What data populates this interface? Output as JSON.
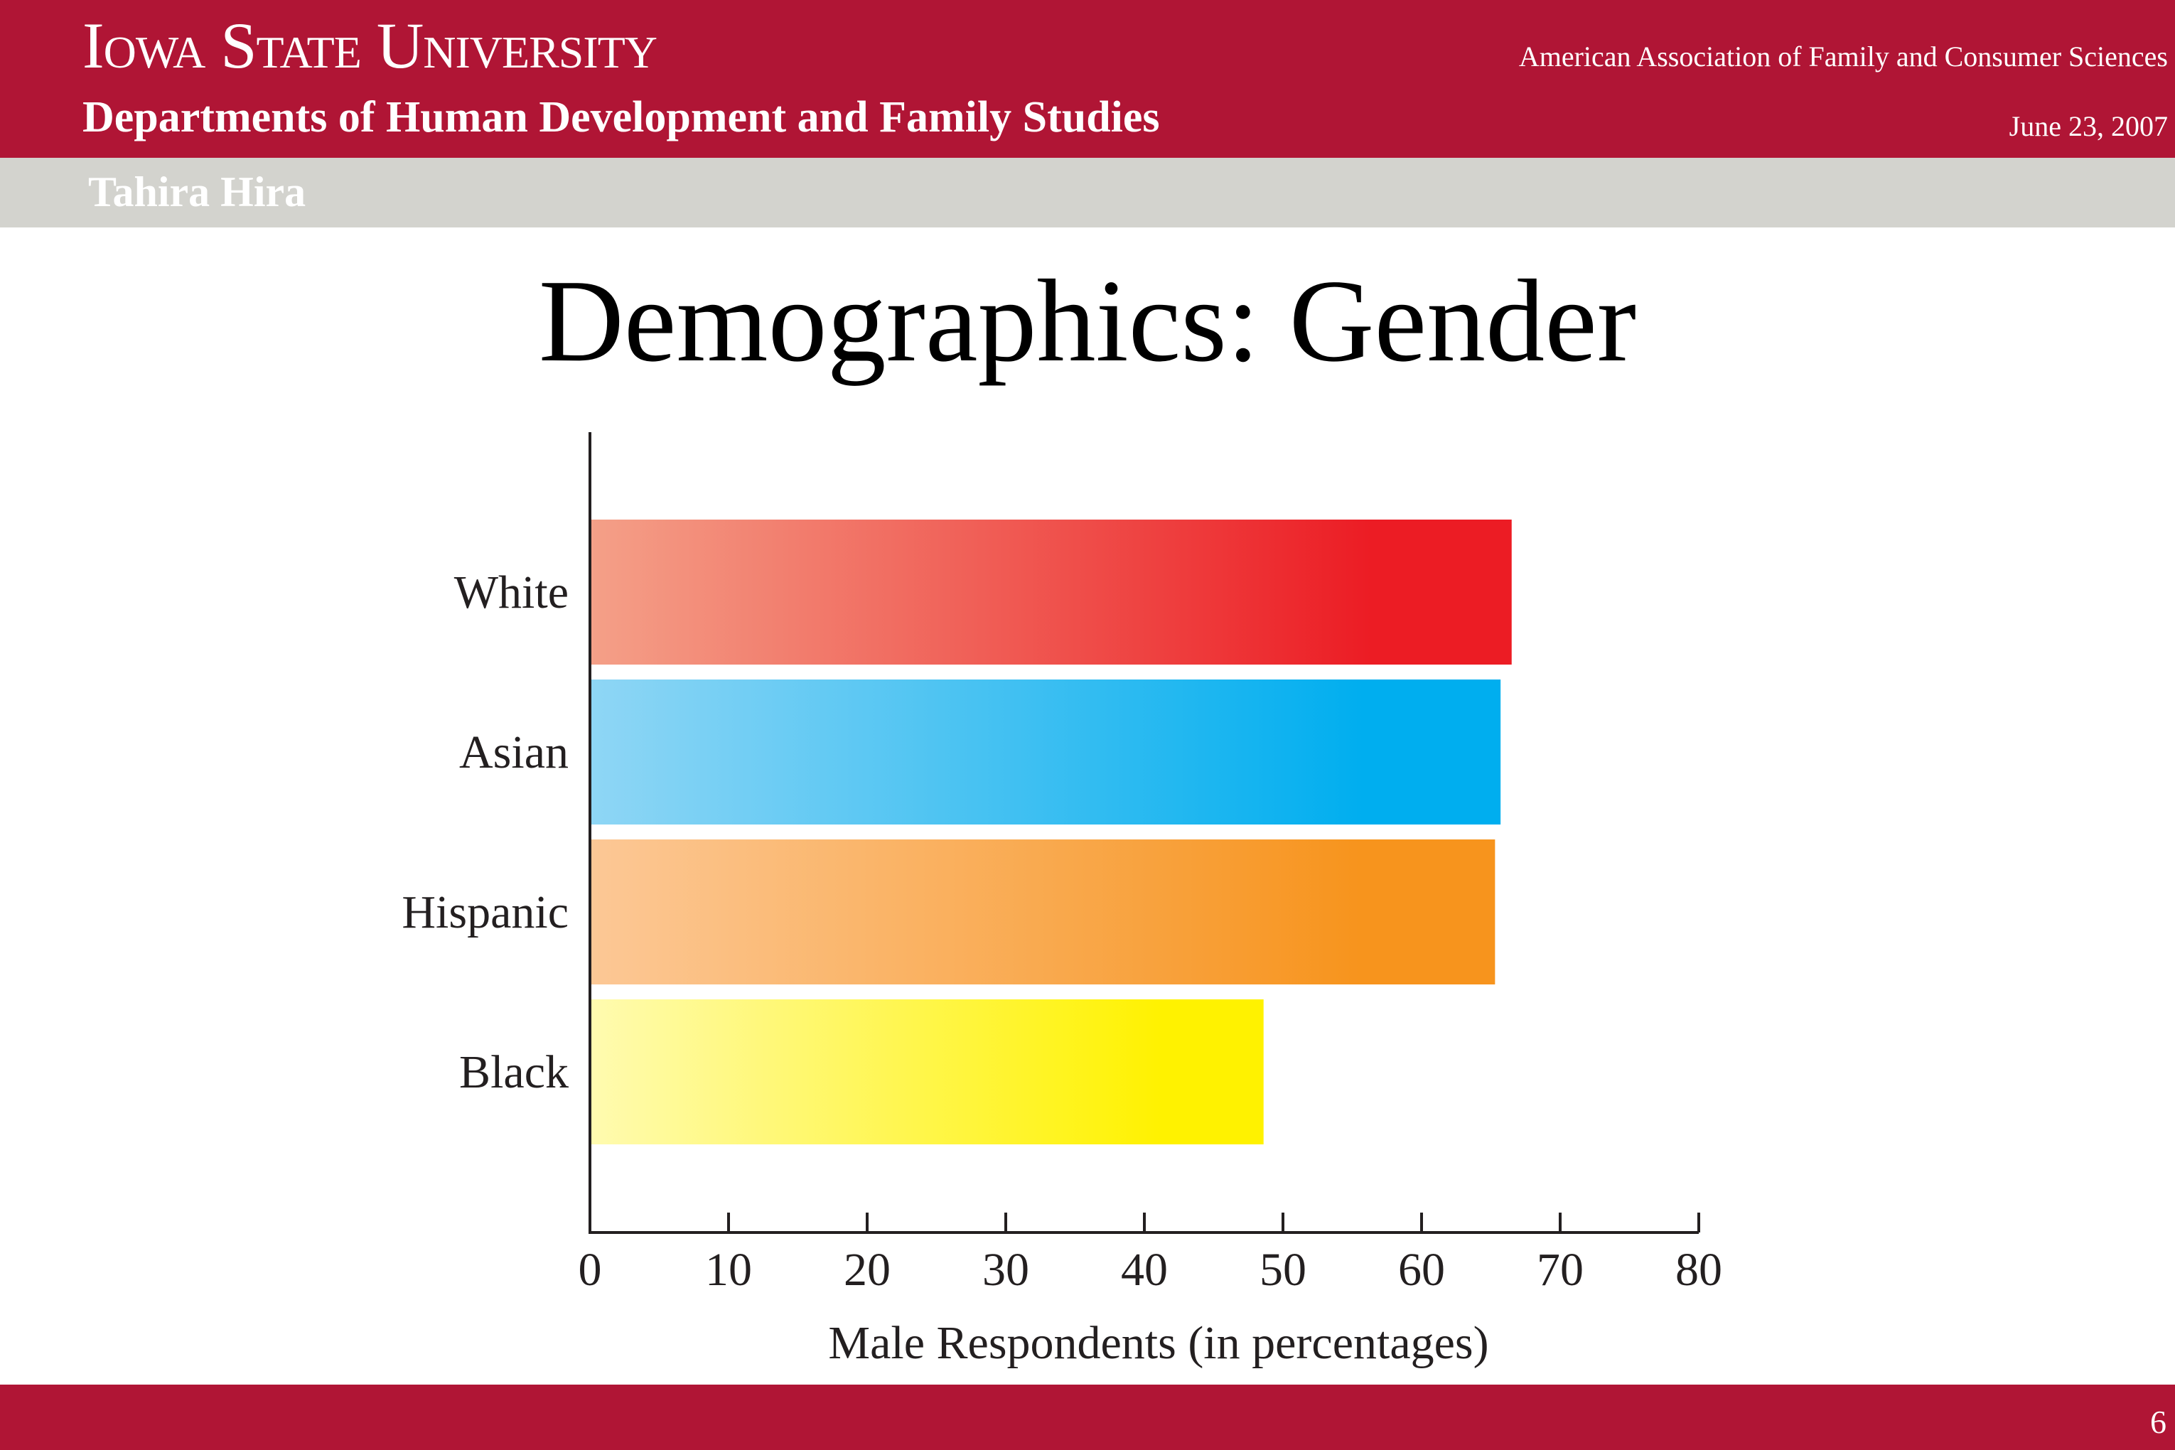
{
  "header": {
    "university": "Iowa State University",
    "department": "Departments of Human Development and Family Studies",
    "conference": "American Association of Family and Consumer Sciences",
    "date": "June 23, 2007",
    "author": "Tahira Hira"
  },
  "slide": {
    "title": "Demographics: Gender",
    "page_number": "6"
  },
  "colors": {
    "brand": "#b01535",
    "author_bar": "#d3d3ce"
  },
  "chart_data": {
    "type": "bar",
    "orientation": "horizontal",
    "categories": [
      "White",
      "Asian",
      "Hispanic",
      "Black"
    ],
    "values": [
      66.5,
      65.7,
      65.3,
      48.6
    ],
    "xlabel": "Male Respondents (in percentages)",
    "ylabel": "",
    "xlim": [
      0,
      80
    ],
    "xticks": [
      0,
      10,
      20,
      30,
      40,
      50,
      60,
      70,
      80
    ],
    "grid": false,
    "bar_colors": [
      [
        "#f4a088",
        "#ec1c24"
      ],
      [
        "#8fd6f5",
        "#00aeef"
      ],
      [
        "#fcc896",
        "#f7941d"
      ],
      [
        "#fffbb0",
        "#fff200"
      ]
    ]
  }
}
